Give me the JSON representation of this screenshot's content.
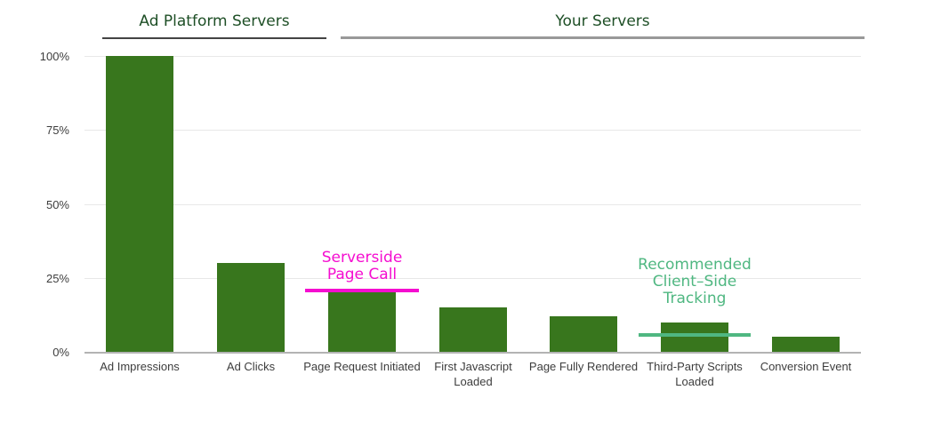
{
  "chart_data": {
    "type": "bar",
    "title": "",
    "xlabel": "",
    "ylabel": "",
    "categories": [
      "Ad Impressions",
      "Ad Clicks",
      "Page Request Initiated",
      "First Javascript Loaded",
      "Page Fully Rendered",
      "Third-Party Scripts Loaded",
      "Conversion Event"
    ],
    "values": [
      100,
      30,
      20,
      15,
      12,
      10,
      5
    ],
    "value_unit": "%",
    "ylim": [
      0,
      100
    ],
    "yticks": [
      {
        "value": 100,
        "label": "100%"
      },
      {
        "value": 75,
        "label": "75%"
      },
      {
        "value": 50,
        "label": "50%"
      },
      {
        "value": 25,
        "label": "25%"
      },
      {
        "value": 0,
        "label": "0%"
      }
    ],
    "grid": true,
    "legend": "none",
    "bar_color": "#38761d",
    "group_headers": [
      {
        "label": "Ad Platform Servers",
        "category_start": 0,
        "category_end": 1,
        "text_color": "#1e4f26",
        "underline_color": "#434343"
      },
      {
        "label": "Your Servers",
        "category_start": 2,
        "category_end": 6,
        "text_color": "#1e4f26",
        "underline_color": "#999999"
      }
    ],
    "annotations": [
      {
        "lines": [
          "Serverside",
          "Page Call"
        ],
        "color": "#f50dd0",
        "category_index": 2,
        "marker_value": 20
      },
      {
        "lines": [
          "Recommended",
          "Client–Side",
          "Tracking"
        ],
        "color": "#4fb781",
        "category_index": 5,
        "marker_value": 6
      }
    ]
  }
}
